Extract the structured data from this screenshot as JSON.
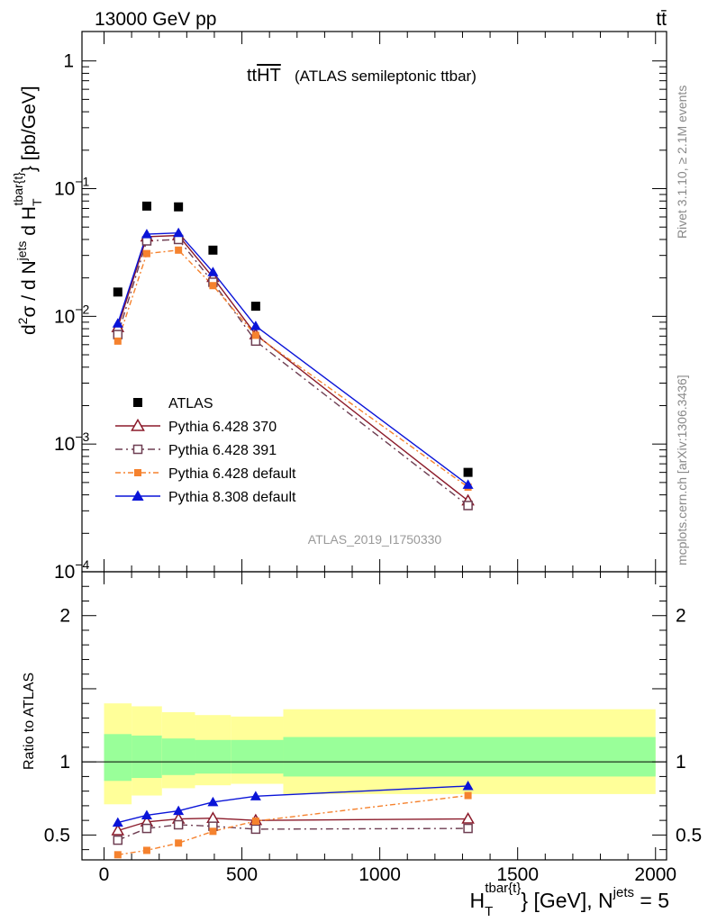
{
  "header": {
    "energy_label": "13000 GeV pp",
    "process_label": "tt̄"
  },
  "side_labels": {
    "rivet": "Rivet 3.1.10, ≥ 2.1M events",
    "mcplots": "mcplots.cern.ch [arXiv:1306.3436]"
  },
  "analysis_id": "ATLAS_2019_I1750330",
  "colors": {
    "atlas": "#000000",
    "p6_370": "#8b1a2a",
    "p6_391": "#6e3e52",
    "p6_default": "#f5822e",
    "p8_default": "#0a14d8",
    "band_inner": "#99ff99",
    "band_outer": "#ffff99"
  },
  "chart_data": [
    {
      "type": "scatter",
      "title_main": "tt",
      "title_overline": "HT",
      "title_suffix": "(ATLAS semileptonic ttbar)",
      "ylabel_parts": {
        "d2": "2",
        "sigma_part": "σ  /  d N",
        "jets_sup": "jets",
        "dH": " d H",
        "T_sub": "T",
        "tbar_sup": "tbar{t}",
        "unit": "} [pb/GeV]"
      },
      "yscale": "log",
      "ylim": [
        0.0001,
        1.7
      ],
      "xlim": [
        -80,
        2040
      ],
      "ytick_labels": [
        "10",
        "10",
        "10",
        "10",
        "1"
      ],
      "ytick_exps": [
        "−4",
        "−3",
        "−2",
        "−1",
        ""
      ],
      "x": [
        50,
        155,
        270,
        395,
        550,
        1320
      ],
      "series": [
        {
          "name": "ATLAS",
          "key": "atlas",
          "marker": "square",
          "values": [
            0.0155,
            0.073,
            0.072,
            0.033,
            0.012,
            0.0006
          ]
        },
        {
          "name": "Pythia 6.428 370",
          "key": "p6_370",
          "marker": "triangle-open",
          "values": [
            0.0082,
            0.042,
            0.043,
            0.0202,
            0.0072,
            0.00036
          ]
        },
        {
          "name": "Pythia 6.428 391",
          "key": "p6_391",
          "marker": "square-open",
          "values": [
            0.0072,
            0.039,
            0.04,
            0.0185,
            0.0064,
            0.00033
          ]
        },
        {
          "name": "Pythia 6.428 default",
          "key": "p6_default",
          "marker": "square-small",
          "values": [
            0.0064,
            0.031,
            0.033,
            0.0174,
            0.0071,
            0.00046
          ]
        },
        {
          "name": "Pythia 8.308 default",
          "key": "p8_default",
          "marker": "triangle",
          "values": [
            0.0088,
            0.044,
            0.045,
            0.0222,
            0.0084,
            0.00048
          ]
        }
      ]
    },
    {
      "type": "line",
      "ylabel": "Ratio to ATLAS",
      "ylim": [
        0.33,
        2.3
      ],
      "xlim": [
        -80,
        2040
      ],
      "yticks": [
        0.5,
        1,
        2
      ],
      "ytick_labels": [
        "0.5",
        "1",
        "2"
      ],
      "xticks": [
        0,
        500,
        1000,
        1500,
        2000
      ],
      "xtick_labels": [
        "0",
        "500",
        "1000",
        "1500",
        "2000"
      ],
      "xlabel_parts": {
        "H": "H",
        "T_sub": "T",
        "tbar_sup": "tbar{t}",
        "rest": "} [GeV], N",
        "jets_sup": "jets",
        "eq": " = 5"
      },
      "bands": [
        {
          "x0": 0,
          "x1": 100,
          "inner": [
            0.87,
            1.19
          ],
          "outer": [
            0.71,
            1.4
          ]
        },
        {
          "x0": 100,
          "x1": 210,
          "inner": [
            0.89,
            1.18
          ],
          "outer": [
            0.77,
            1.38
          ]
        },
        {
          "x0": 210,
          "x1": 330,
          "inner": [
            0.91,
            1.16
          ],
          "outer": [
            0.82,
            1.34
          ]
        },
        {
          "x0": 330,
          "x1": 460,
          "inner": [
            0.92,
            1.15
          ],
          "outer": [
            0.84,
            1.32
          ]
        },
        {
          "x0": 460,
          "x1": 650,
          "inner": [
            0.92,
            1.15
          ],
          "outer": [
            0.85,
            1.31
          ]
        },
        {
          "x0": 650,
          "x1": 2000,
          "inner": [
            0.9,
            1.17
          ],
          "outer": [
            0.78,
            1.36
          ]
        }
      ],
      "x": [
        50,
        155,
        270,
        395,
        550,
        1320
      ],
      "series": [
        {
          "key": "p6_370",
          "marker": "triangle-open",
          "values": [
            0.53,
            0.59,
            0.61,
            0.615,
            0.6,
            0.61
          ]
        },
        {
          "key": "p6_391",
          "marker": "square-open",
          "values": [
            0.465,
            0.545,
            0.57,
            0.56,
            0.54,
            0.545
          ]
        },
        {
          "key": "p6_default",
          "marker": "square-small",
          "values": [
            0.365,
            0.395,
            0.445,
            0.525,
            0.595,
            0.77
          ]
        },
        {
          "key": "p8_default",
          "marker": "triangle",
          "values": [
            0.585,
            0.635,
            0.665,
            0.725,
            0.765,
            0.835
          ]
        }
      ]
    }
  ]
}
